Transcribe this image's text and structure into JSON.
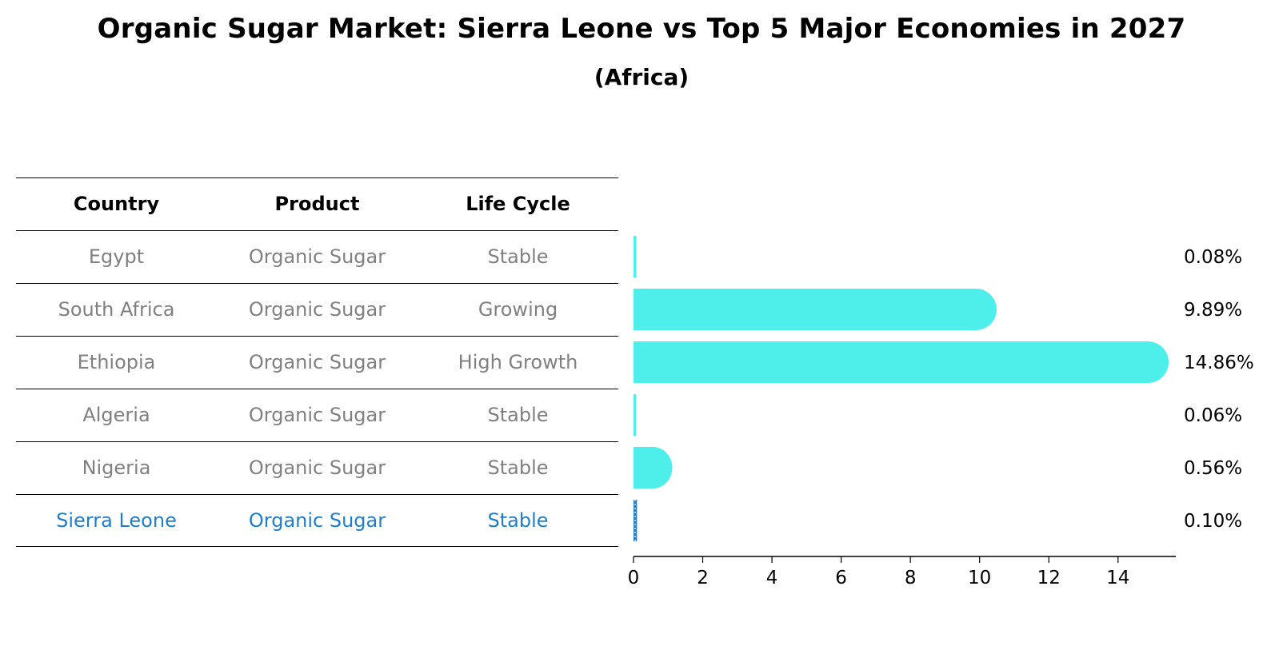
{
  "title": "Organic Sugar Market: Sierra Leone vs Top 5 Major Economies in 2027",
  "subtitle": "(Africa)",
  "table": {
    "headers": [
      "Country",
      "Product",
      "Life Cycle"
    ],
    "rows": [
      {
        "country": "Egypt",
        "product": "Organic Sugar",
        "life_cycle": "Stable"
      },
      {
        "country": "South Africa",
        "product": "Organic Sugar",
        "life_cycle": "Growing"
      },
      {
        "country": "Ethiopia",
        "product": "Organic Sugar",
        "life_cycle": "High Growth"
      },
      {
        "country": "Algeria",
        "product": "Organic Sugar",
        "life_cycle": "Stable"
      },
      {
        "country": "Nigeria",
        "product": "Organic Sugar",
        "life_cycle": "Stable"
      },
      {
        "country": "Sierra Leone",
        "product": "Organic Sugar",
        "life_cycle": "Stable"
      }
    ],
    "highlight_row": "Sierra Leone",
    "highlight_color": "#1f7ecb",
    "text_color": "#808080"
  },
  "chart_data": {
    "type": "bar",
    "orientation": "horizontal",
    "categories": [
      "Egypt",
      "South Africa",
      "Ethiopia",
      "Algeria",
      "Nigeria",
      "Sierra Leone"
    ],
    "values": [
      0.08,
      9.89,
      14.86,
      0.06,
      0.56,
      0.1
    ],
    "value_labels": [
      "0.08%",
      "9.89%",
      "14.86%",
      "0.06%",
      "0.56%",
      "0.10%"
    ],
    "xlim": [
      0,
      15.6
    ],
    "xticks": [
      0,
      2,
      4,
      6,
      8,
      10,
      12,
      14
    ],
    "bar_color": "#4eeeea",
    "highlight_color": "#1f7ecb",
    "highlight_category": "Sierra Leone",
    "grid": false,
    "xlabel": "",
    "ylabel": ""
  }
}
